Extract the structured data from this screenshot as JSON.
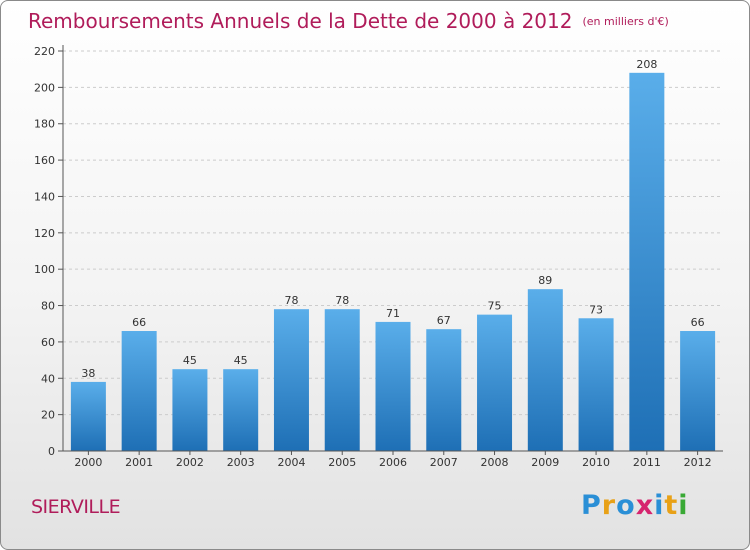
{
  "title": "Remboursements Annuels de la Dette de 2000 à 2012",
  "unit": "(en milliers d'€)",
  "commune": "SIERVILLE",
  "logo": {
    "letters": [
      "P",
      "r",
      "o",
      "x",
      "i",
      "t",
      "i"
    ],
    "colors": [
      "#2a8fd6",
      "#e8a117",
      "#2a8fd6",
      "#d6246e",
      "#2a8fd6",
      "#e8a117",
      "#39a935"
    ]
  },
  "colors": {
    "title": "#b01c5a",
    "bar_top": "#5aaeea",
    "bar_bottom": "#1e6fb5",
    "axis": "#555555",
    "grid": "#cccccc"
  },
  "chart_data": {
    "type": "bar",
    "title": "Remboursements Annuels de la Dette de 2000 à 2012",
    "xlabel": "",
    "ylabel": "",
    "categories": [
      "2000",
      "2001",
      "2002",
      "2003",
      "2004",
      "2005",
      "2006",
      "2007",
      "2008",
      "2009",
      "2010",
      "2011",
      "2012"
    ],
    "values": [
      38,
      66,
      45,
      45,
      78,
      78,
      71,
      67,
      75,
      89,
      73,
      208,
      66
    ],
    "ylim": [
      0,
      220
    ],
    "yticks": [
      0,
      20,
      40,
      60,
      80,
      100,
      120,
      140,
      160,
      180,
      200,
      220
    ],
    "grid": true,
    "legend": "none"
  }
}
